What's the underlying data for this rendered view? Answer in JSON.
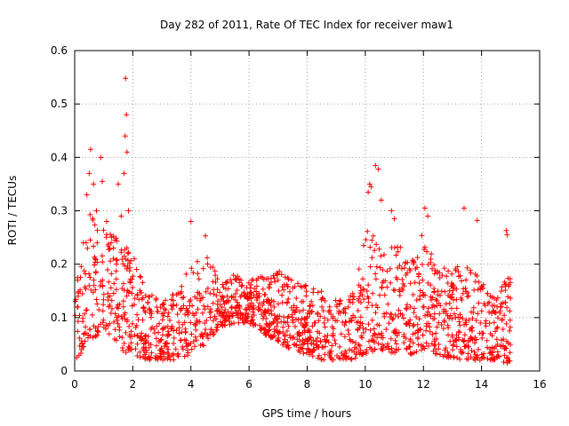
{
  "chart_data": {
    "type": "scatter",
    "title": "Day 282 of 2011, Rate Of TEC Index for receiver maw1",
    "xlabel": "GPS time / hours",
    "ylabel": "ROTI / TECUs",
    "xlim": [
      0,
      16
    ],
    "ylim": [
      0,
      0.6
    ],
    "xticks": [
      0,
      2,
      4,
      6,
      8,
      10,
      12,
      14,
      16
    ],
    "yticks": [
      0,
      0.1,
      0.2,
      0.3,
      0.4,
      0.5,
      0.6
    ],
    "xtick_labels": [
      "0",
      "2",
      "4",
      "6",
      "8",
      "10",
      "12",
      "14",
      "16"
    ],
    "ytick_labels": [
      "0",
      "0.1",
      "0.2",
      "0.3",
      "0.4",
      "0.5",
      "0.6"
    ],
    "grid": true,
    "marker": "+",
    "color": "#ff0000",
    "envelope": {
      "description": "approximate per-hour ROTI range of the dense point cloud",
      "hours": [
        0.0,
        0.5,
        1.0,
        1.5,
        2.0,
        2.5,
        3.0,
        3.5,
        4.0,
        4.5,
        5.0,
        5.5,
        6.0,
        6.5,
        7.0,
        7.5,
        8.0,
        8.5,
        9.0,
        9.5,
        10.0,
        10.5,
        11.0,
        11.5,
        12.0,
        12.5,
        13.0,
        13.5,
        14.0,
        14.5,
        15.0
      ],
      "low": [
        0.02,
        0.05,
        0.08,
        0.04,
        0.03,
        0.02,
        0.02,
        0.02,
        0.03,
        0.05,
        0.08,
        0.09,
        0.09,
        0.07,
        0.05,
        0.04,
        0.03,
        0.02,
        0.02,
        0.02,
        0.03,
        0.04,
        0.03,
        0.03,
        0.04,
        0.03,
        0.02,
        0.02,
        0.02,
        0.02,
        0.01
      ],
      "high": [
        0.2,
        0.3,
        0.27,
        0.25,
        0.22,
        0.15,
        0.13,
        0.15,
        0.2,
        0.22,
        0.17,
        0.18,
        0.17,
        0.18,
        0.19,
        0.17,
        0.16,
        0.15,
        0.14,
        0.15,
        0.28,
        0.25,
        0.24,
        0.22,
        0.26,
        0.19,
        0.2,
        0.2,
        0.17,
        0.15,
        0.18
      ],
      "base_density": 38
    },
    "outliers": [
      {
        "x": 0.1,
        "y": 0.175
      },
      {
        "x": 0.3,
        "y": 0.24
      },
      {
        "x": 0.42,
        "y": 0.33
      },
      {
        "x": 0.5,
        "y": 0.37
      },
      {
        "x": 0.55,
        "y": 0.415
      },
      {
        "x": 0.65,
        "y": 0.35
      },
      {
        "x": 0.75,
        "y": 0.3
      },
      {
        "x": 0.9,
        "y": 0.4
      },
      {
        "x": 0.95,
        "y": 0.355
      },
      {
        "x": 1.1,
        "y": 0.28
      },
      {
        "x": 1.5,
        "y": 0.35
      },
      {
        "x": 1.6,
        "y": 0.29
      },
      {
        "x": 1.7,
        "y": 0.37
      },
      {
        "x": 1.74,
        "y": 0.44
      },
      {
        "x": 1.75,
        "y": 0.548
      },
      {
        "x": 1.78,
        "y": 0.48
      },
      {
        "x": 1.8,
        "y": 0.41
      },
      {
        "x": 1.85,
        "y": 0.3
      },
      {
        "x": 2.05,
        "y": 0.21
      },
      {
        "x": 4.0,
        "y": 0.28
      },
      {
        "x": 4.5,
        "y": 0.253
      },
      {
        "x": 10.1,
        "y": 0.335
      },
      {
        "x": 10.15,
        "y": 0.35
      },
      {
        "x": 10.2,
        "y": 0.345
      },
      {
        "x": 10.35,
        "y": 0.385
      },
      {
        "x": 10.45,
        "y": 0.378
      },
      {
        "x": 10.55,
        "y": 0.32
      },
      {
        "x": 10.9,
        "y": 0.3
      },
      {
        "x": 11.0,
        "y": 0.285
      },
      {
        "x": 12.05,
        "y": 0.305
      },
      {
        "x": 12.15,
        "y": 0.29
      },
      {
        "x": 13.4,
        "y": 0.305
      },
      {
        "x": 13.85,
        "y": 0.282
      },
      {
        "x": 14.85,
        "y": 0.263
      },
      {
        "x": 14.88,
        "y": 0.255
      }
    ]
  }
}
